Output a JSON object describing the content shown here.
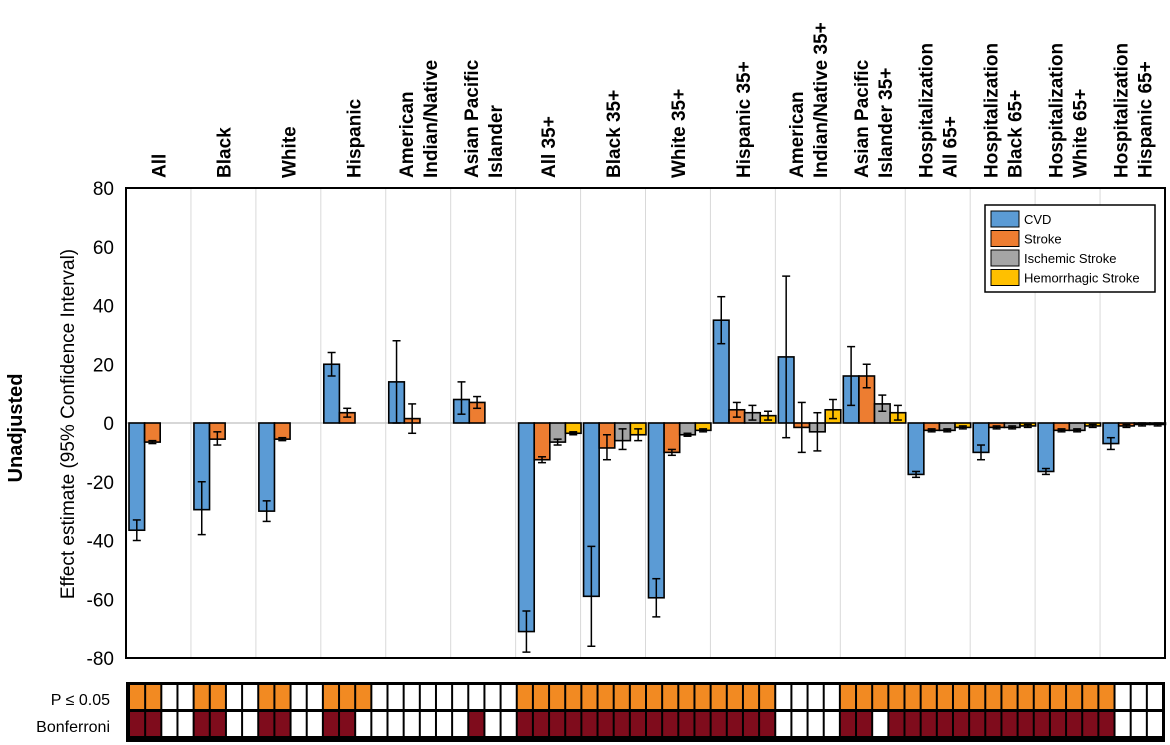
{
  "chart_data": {
    "type": "bar",
    "row_label": "Unadjusted",
    "ylabel": "Effect estimate (95% Confidence Interval)",
    "ylim": [
      -80,
      80
    ],
    "yticks": [
      80,
      60,
      40,
      20,
      0,
      -20,
      -40,
      -60,
      -80
    ],
    "grid": true,
    "legend_position": "top-right",
    "categories": [
      [
        "All"
      ],
      [
        "Black"
      ],
      [
        "White"
      ],
      [
        "Hispanic"
      ],
      [
        "American",
        "Indian/Native"
      ],
      [
        "Asian Pacific",
        "Islander"
      ],
      [
        "All 35+"
      ],
      [
        "Black 35+"
      ],
      [
        "White 35+"
      ],
      [
        "Hispanic 35+"
      ],
      [
        "American",
        "Indian/Native 35+"
      ],
      [
        "Asian Pacific",
        "Islander 35+"
      ],
      [
        "Hospitalization",
        "All 65+"
      ],
      [
        "Hospitalization",
        "Black 65+"
      ],
      [
        "Hospitalization",
        "White 65+"
      ],
      [
        "Hospitalization",
        "Hispanic 65+"
      ]
    ],
    "series": [
      {
        "name": "CVD",
        "color": "#5B9BD5",
        "values": [
          -36.5,
          -29.5,
          -30,
          20,
          14,
          8,
          -71,
          -59,
          -59.5,
          35,
          22.5,
          16,
          -17.5,
          -10,
          -16.5,
          -7
        ],
        "ci": [
          [
            -40,
            -33
          ],
          [
            -38,
            -20
          ],
          [
            -33.5,
            -26.5
          ],
          [
            16,
            24
          ],
          [
            0,
            28
          ],
          [
            3,
            14
          ],
          [
            -78,
            -64
          ],
          [
            -76,
            -42
          ],
          [
            -66,
            -53
          ],
          [
            27,
            43
          ],
          [
            -5,
            50
          ],
          [
            6,
            26
          ],
          [
            -18.5,
            -16.5
          ],
          [
            -12.5,
            -7.5
          ],
          [
            -17.5,
            -15.5
          ],
          [
            -9,
            -5
          ]
        ]
      },
      {
        "name": "Stroke",
        "color": "#ED7D31",
        "values": [
          -6.5,
          -5.5,
          -5.5,
          3.5,
          1.5,
          7,
          -12.5,
          -8.5,
          -10,
          4.5,
          -1.5,
          16,
          -2.5,
          -1.5,
          -2.5,
          -1
        ],
        "ci": [
          [
            -7,
            -6
          ],
          [
            -7.5,
            -3
          ],
          [
            -6,
            -5
          ],
          [
            2,
            5
          ],
          [
            -3.5,
            6.5
          ],
          [
            5,
            9
          ],
          [
            -13.5,
            -11.5
          ],
          [
            -12.5,
            -4
          ],
          [
            -11,
            -9
          ],
          [
            2,
            7
          ],
          [
            -10,
            7
          ],
          [
            12,
            20
          ],
          [
            -3,
            -2
          ],
          [
            -2,
            -1
          ],
          [
            -3,
            -2
          ],
          [
            -1.5,
            -0.5
          ]
        ]
      },
      {
        "name": "Ischemic Stroke",
        "color": "#A5A5A5",
        "values": [
          null,
          null,
          null,
          null,
          null,
          null,
          -6.5,
          -6,
          -4,
          3.5,
          -3,
          6.5,
          -2.5,
          -1.5,
          -2.5,
          -0.5
        ],
        "ci": [
          null,
          null,
          null,
          null,
          null,
          null,
          [
            -7.5,
            -5.5
          ],
          [
            -9,
            -2
          ],
          [
            -4.5,
            -3.5
          ],
          [
            1,
            6
          ],
          [
            -9.5,
            3.5
          ],
          [
            4,
            9.5
          ],
          [
            -3,
            -2
          ],
          [
            -2,
            -1
          ],
          [
            -3,
            -2
          ],
          [
            -1,
            0
          ]
        ]
      },
      {
        "name": "Hemorrhagic Stroke",
        "color": "#FFC000",
        "values": [
          null,
          null,
          null,
          null,
          null,
          null,
          -3.5,
          -4,
          -2.5,
          2.5,
          4.5,
          3.5,
          -1.5,
          -1,
          -1,
          -0.5
        ],
        "ci": [
          null,
          null,
          null,
          null,
          null,
          null,
          [
            -4,
            -3
          ],
          [
            -6,
            -2
          ],
          [
            -3,
            -2
          ],
          [
            1,
            4
          ],
          [
            1.5,
            8
          ],
          [
            1,
            6
          ],
          [
            -2,
            -1
          ],
          [
            -1.5,
            -0.5
          ],
          [
            -1.5,
            -0.5
          ],
          [
            -1,
            0
          ]
        ]
      }
    ],
    "significance": {
      "rows": [
        {
          "label": "P ≤ 0.05",
          "color": "#F28A22",
          "cells": [
            [
              1,
              1,
              0,
              0
            ],
            [
              1,
              1,
              0,
              0
            ],
            [
              1,
              1,
              0,
              0
            ],
            [
              1,
              1,
              1,
              0
            ],
            [
              0,
              0,
              0,
              0
            ],
            [
              0,
              0,
              0,
              0
            ],
            [
              1,
              1,
              1,
              1
            ],
            [
              1,
              1,
              1,
              1
            ],
            [
              1,
              1,
              1,
              1
            ],
            [
              1,
              1,
              1,
              1
            ],
            [
              0,
              0,
              0,
              0
            ],
            [
              1,
              1,
              1,
              1
            ],
            [
              1,
              1,
              1,
              1
            ],
            [
              1,
              1,
              1,
              1
            ],
            [
              1,
              1,
              1,
              1
            ],
            [
              1,
              0,
              0,
              0
            ]
          ]
        },
        {
          "label": "Bonferroni",
          "color": "#7F0C1C",
          "cells": [
            [
              1,
              1,
              0,
              0
            ],
            [
              1,
              1,
              0,
              0
            ],
            [
              1,
              1,
              0,
              0
            ],
            [
              1,
              1,
              0,
              0
            ],
            [
              0,
              0,
              0,
              0
            ],
            [
              0,
              1,
              0,
              0
            ],
            [
              1,
              1,
              1,
              1
            ],
            [
              1,
              1,
              1,
              1
            ],
            [
              1,
              1,
              1,
              1
            ],
            [
              1,
              1,
              1,
              1
            ],
            [
              0,
              0,
              0,
              0
            ],
            [
              1,
              1,
              0,
              1
            ],
            [
              1,
              1,
              1,
              1
            ],
            [
              1,
              1,
              1,
              1
            ],
            [
              1,
              1,
              1,
              1
            ],
            [
              1,
              0,
              0,
              0
            ]
          ]
        }
      ]
    }
  }
}
